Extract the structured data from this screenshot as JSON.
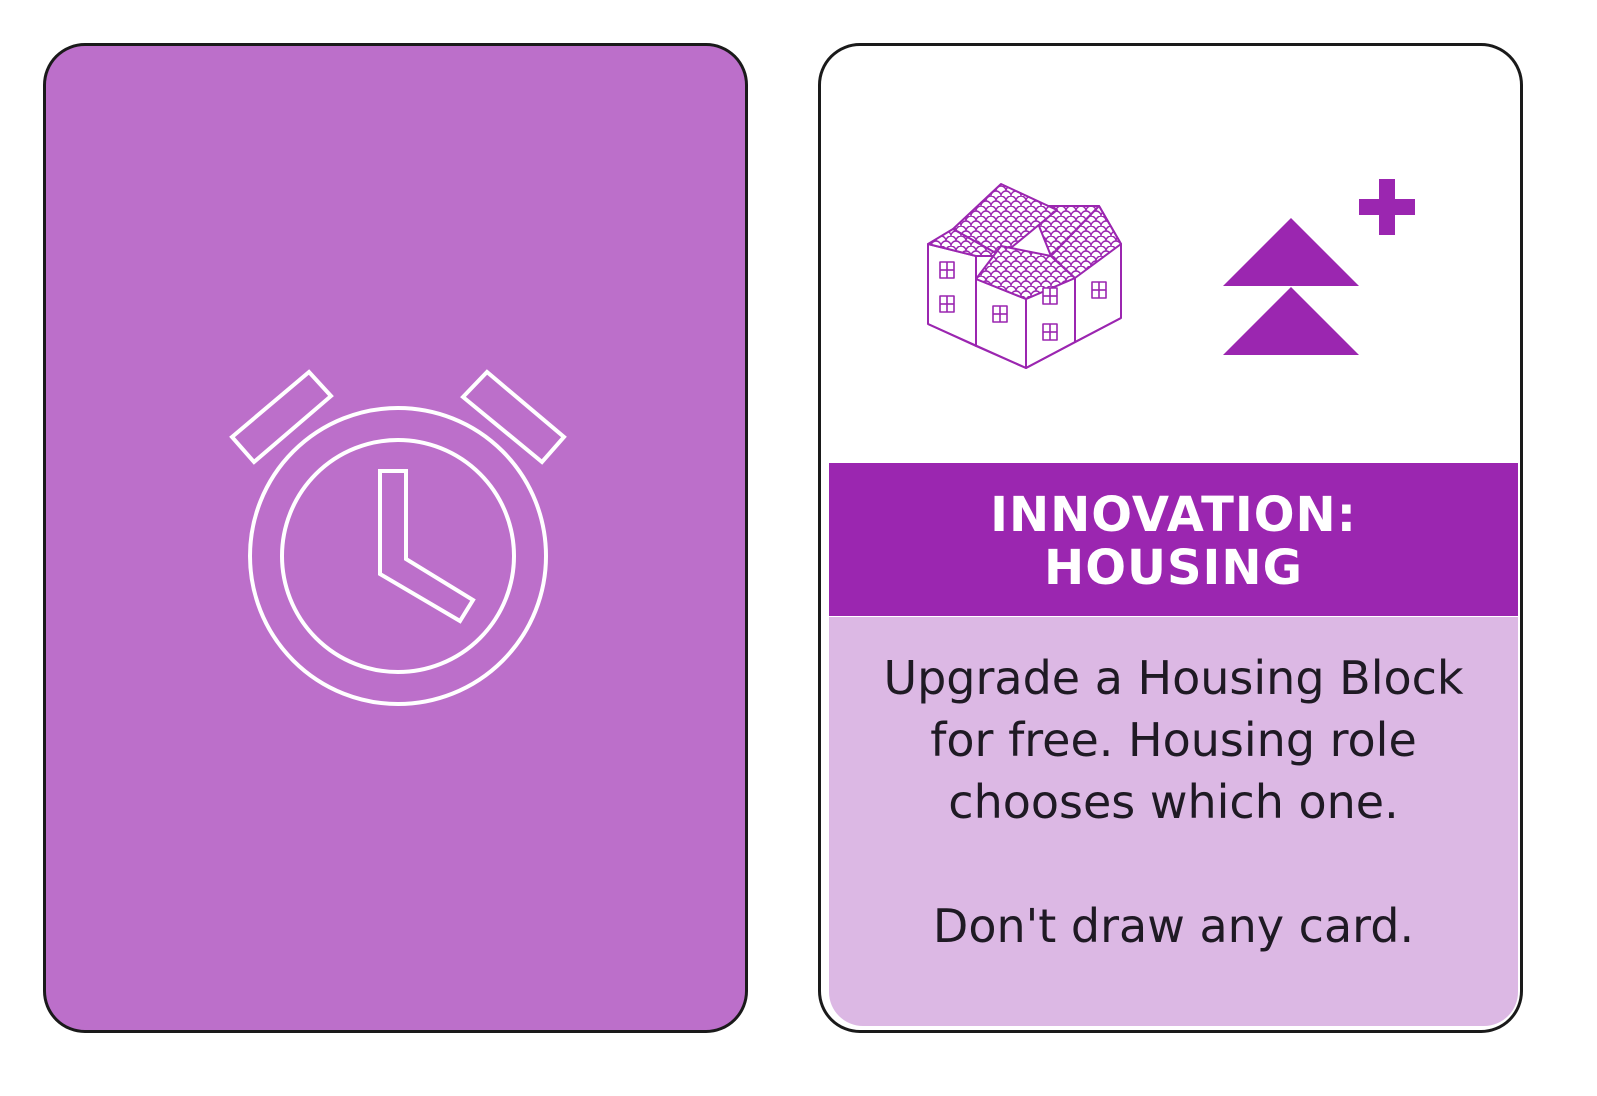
{
  "card_back": {
    "icon": "alarm-clock-icon",
    "background_color": "#bc6fca",
    "icon_color": "#ffffff"
  },
  "card_front": {
    "icons": [
      "housing-block-icon",
      "upgrade-arrows-plus-icon"
    ],
    "accent_color": "#9b26b0",
    "panel_color": "#dcb8e4",
    "title_line1": "INNOVATION:",
    "title_line2": "HOUSING",
    "body_text": "Upgrade a Housing Block for free. Housing role chooses which one.",
    "note_text": "Don't draw any card."
  }
}
